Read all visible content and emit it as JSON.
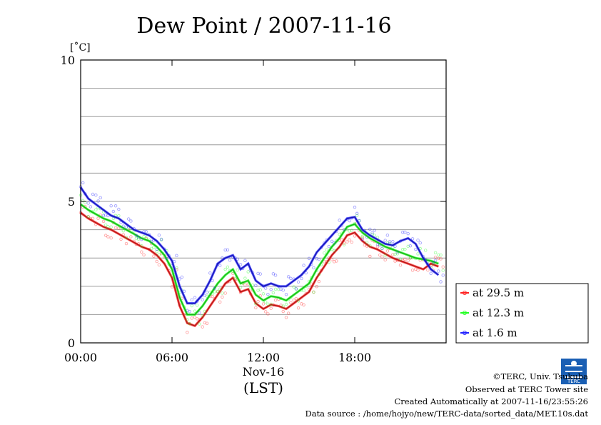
{
  "chart_data": {
    "type": "line",
    "title": "Dew Point / 2007-11-16",
    "yunit": "[˚C]",
    "ylim": [
      0,
      10
    ],
    "yticks": [
      {
        "value": 0,
        "label": "0"
      },
      {
        "value": 5,
        "label": "5"
      },
      {
        "value": 10,
        "label": "10"
      }
    ],
    "xlim": [
      0,
      24
    ],
    "xticks": [
      {
        "value": 0,
        "label": "00:00"
      },
      {
        "value": 6,
        "label": "06:00"
      },
      {
        "value": 12,
        "label": "12:00"
      },
      {
        "value": 18,
        "label": "18:00"
      }
    ],
    "date_label": "Nov-16",
    "xlabel": "(LST)",
    "grid": true,
    "legend_position": "right",
    "series": [
      {
        "name": "at 29.5 m",
        "color": "#ff2020",
        "x": [
          0,
          0.5,
          1,
          1.5,
          2,
          2.5,
          3,
          3.5,
          4,
          4.5,
          5,
          5.5,
          6,
          6.5,
          7,
          7.5,
          8,
          8.5,
          9,
          9.5,
          10,
          10.5,
          11,
          11.5,
          12,
          12.5,
          13,
          13.5,
          14,
          14.5,
          15,
          15.5,
          16,
          16.5,
          17,
          17.5,
          18,
          18.5,
          19,
          19.5,
          20,
          20.5,
          21,
          21.5,
          22,
          22.5,
          23,
          23.5
        ],
        "y": [
          4.6,
          4.4,
          4.25,
          4.1,
          4.0,
          3.85,
          3.7,
          3.55,
          3.4,
          3.3,
          3.1,
          2.8,
          2.3,
          1.3,
          0.7,
          0.6,
          0.9,
          1.3,
          1.7,
          2.1,
          2.3,
          1.8,
          1.9,
          1.4,
          1.2,
          1.35,
          1.3,
          1.2,
          1.4,
          1.6,
          1.8,
          2.3,
          2.7,
          3.1,
          3.4,
          3.8,
          3.9,
          3.6,
          3.4,
          3.3,
          3.15,
          3.0,
          2.9,
          2.8,
          2.7,
          2.6,
          2.8,
          2.7
        ]
      },
      {
        "name": "at 12.3 m",
        "color": "#20ff20",
        "x": [
          0,
          0.5,
          1,
          1.5,
          2,
          2.5,
          3,
          3.5,
          4,
          4.5,
          5,
          5.5,
          6,
          6.5,
          7,
          7.5,
          8,
          8.5,
          9,
          9.5,
          10,
          10.5,
          11,
          11.5,
          12,
          12.5,
          13,
          13.5,
          14,
          14.5,
          15,
          15.5,
          16,
          16.5,
          17,
          17.5,
          18,
          18.5,
          19,
          19.5,
          20,
          20.5,
          21,
          21.5,
          22,
          22.5,
          23,
          23.5
        ],
        "y": [
          4.9,
          4.7,
          4.55,
          4.4,
          4.3,
          4.15,
          4.0,
          3.85,
          3.7,
          3.6,
          3.4,
          3.1,
          2.6,
          1.6,
          1.0,
          1.0,
          1.3,
          1.7,
          2.1,
          2.4,
          2.6,
          2.1,
          2.2,
          1.7,
          1.5,
          1.65,
          1.6,
          1.5,
          1.7,
          1.9,
          2.1,
          2.6,
          3.0,
          3.4,
          3.7,
          4.1,
          4.2,
          3.9,
          3.7,
          3.55,
          3.4,
          3.3,
          3.2,
          3.1,
          3.0,
          2.95,
          2.9,
          2.8
        ]
      },
      {
        "name": "at 1.6 m",
        "color": "#2020ff",
        "x": [
          0,
          0.5,
          1,
          1.5,
          2,
          2.5,
          3,
          3.5,
          4,
          4.5,
          5,
          5.5,
          6,
          6.5,
          7,
          7.5,
          8,
          8.5,
          9,
          9.5,
          10,
          10.5,
          11,
          11.5,
          12,
          12.5,
          13,
          13.5,
          14,
          14.5,
          15,
          15.5,
          16,
          16.5,
          17,
          17.5,
          18,
          18.5,
          19,
          19.5,
          20,
          20.5,
          21,
          21.5,
          22,
          22.5,
          23,
          23.5
        ],
        "y": [
          5.5,
          5.1,
          4.9,
          4.7,
          4.5,
          4.4,
          4.2,
          4.0,
          3.9,
          3.8,
          3.6,
          3.3,
          2.9,
          2.0,
          1.4,
          1.4,
          1.7,
          2.2,
          2.8,
          3.0,
          3.1,
          2.6,
          2.8,
          2.2,
          2.0,
          2.1,
          2.0,
          2.0,
          2.2,
          2.4,
          2.7,
          3.2,
          3.5,
          3.8,
          4.1,
          4.4,
          4.45,
          4.0,
          3.8,
          3.65,
          3.5,
          3.45,
          3.6,
          3.7,
          3.5,
          3.0,
          2.6,
          2.4
        ]
      }
    ]
  },
  "credits": {
    "copyright": "©TERC, Univ. Tsukuba",
    "observed": "Observed at TERC Tower site",
    "created": "Created Automatically at 2007-11-16/23:55:26",
    "source": "Data source : /home/hojyo/new/TERC-data/sorted_data/MET.10s.dat"
  },
  "logo_text": "TERC"
}
